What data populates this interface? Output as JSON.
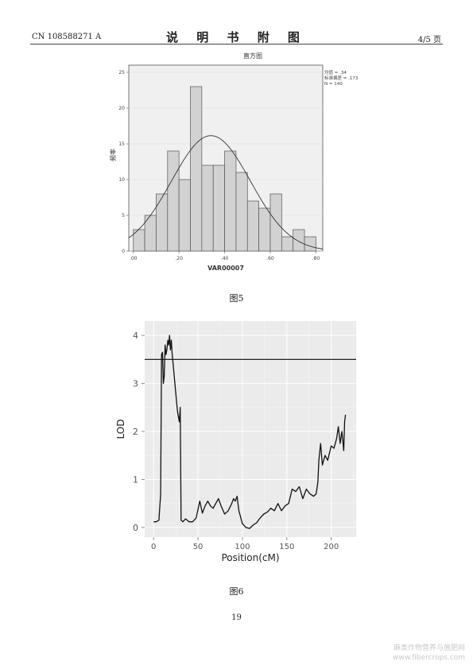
{
  "header": {
    "left": "CN 108588271 A",
    "title": "说 明 书 附 图",
    "right": "4/5 页"
  },
  "figure5": {
    "caption": "图5",
    "chart_data": {
      "type": "bar",
      "title": "直方图",
      "xlabel": "VAR00007",
      "ylabel": "频率",
      "stats": [
        "均值 = .34",
        "标准偏差 = .173",
        "N = 140"
      ],
      "bin_width": 0.05,
      "bin_starts": [
        0.0,
        0.05,
        0.1,
        0.15,
        0.2,
        0.25,
        0.3,
        0.35,
        0.4,
        0.45,
        0.5,
        0.55,
        0.6,
        0.65,
        0.7,
        0.75
      ],
      "values": [
        3,
        5,
        8,
        14,
        10,
        23,
        12,
        12,
        14,
        11,
        7,
        6,
        8,
        2,
        3,
        2
      ],
      "normal_curve": {
        "mean": 0.34,
        "sd": 0.173,
        "n": 140
      },
      "xlim": [
        -0.02,
        0.83
      ],
      "ylim": [
        0,
        26
      ],
      "xticks": [
        ".00",
        ".20",
        ".40",
        ".60",
        ".80"
      ],
      "yticks": [
        "0",
        "5",
        "10",
        "15",
        "20",
        "25"
      ],
      "ytick_values": [
        0,
        5,
        10,
        15,
        20,
        25
      ],
      "xtick_values": [
        0,
        0.2,
        0.4,
        0.6,
        0.8
      ]
    }
  },
  "figure6": {
    "caption": "图6",
    "chart_data": {
      "type": "line",
      "xlabel": "Position(cM)",
      "ylabel": "LOD",
      "xlim": [
        -10,
        228
      ],
      "ylim": [
        -0.2,
        4.3
      ],
      "xticks": [
        "0",
        "50",
        "100",
        "150",
        "200"
      ],
      "xtick_values": [
        0,
        50,
        100,
        150,
        200
      ],
      "yticks": [
        "0",
        "1",
        "2",
        "3",
        "4"
      ],
      "ytick_values": [
        0,
        1,
        2,
        3,
        4
      ],
      "threshold": 3.5,
      "grid": true,
      "x": [
        0,
        3,
        6,
        8,
        9,
        10,
        11,
        12,
        13,
        14,
        15,
        16,
        17,
        18,
        19,
        20,
        21,
        22,
        23,
        24,
        25,
        26,
        27,
        28,
        29,
        30,
        31,
        33,
        36,
        40,
        44,
        48,
        52,
        55,
        58,
        61,
        64,
        67,
        70,
        73,
        76,
        80,
        84,
        88,
        90,
        92,
        94,
        96,
        100,
        104,
        108,
        112,
        116,
        120,
        124,
        128,
        132,
        136,
        140,
        144,
        148,
        152,
        156,
        160,
        164,
        168,
        172,
        176,
        180,
        183,
        185,
        186,
        188,
        190,
        193,
        196,
        200,
        203,
        206,
        208,
        210,
        212,
        214,
        215,
        216
      ],
      "y": [
        0.12,
        0.12,
        0.15,
        0.7,
        3.6,
        3.65,
        3.0,
        3.15,
        3.8,
        3.6,
        3.7,
        3.9,
        3.8,
        4.0,
        3.7,
        3.9,
        3.6,
        3.4,
        3.2,
        3.0,
        2.8,
        2.6,
        2.4,
        2.3,
        2.2,
        2.5,
        0.15,
        0.12,
        0.18,
        0.12,
        0.12,
        0.2,
        0.55,
        0.3,
        0.45,
        0.55,
        0.45,
        0.4,
        0.5,
        0.6,
        0.45,
        0.28,
        0.35,
        0.5,
        0.6,
        0.55,
        0.65,
        0.35,
        0.08,
        0.0,
        -0.02,
        0.05,
        0.1,
        0.2,
        0.28,
        0.32,
        0.4,
        0.35,
        0.5,
        0.35,
        0.45,
        0.5,
        0.8,
        0.75,
        0.85,
        0.6,
        0.8,
        0.7,
        0.65,
        0.7,
        0.95,
        1.4,
        1.75,
        1.3,
        1.5,
        1.4,
        1.7,
        1.65,
        1.85,
        2.1,
        1.75,
        2.0,
        1.6,
        2.2,
        2.35
      ]
    }
  },
  "page_number": "19",
  "watermark": {
    "line1": "麻类作物营养与施肥网",
    "line2": "www.fibercrops.com"
  }
}
